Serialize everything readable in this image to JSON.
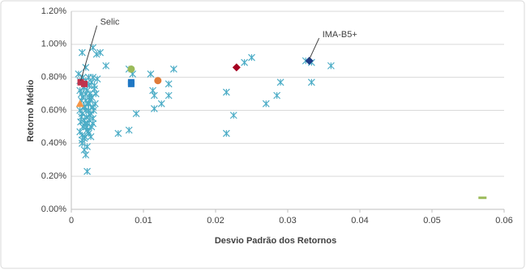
{
  "chart_data": {
    "type": "scatter",
    "x_label": "Desvio Padrão dos Retornos",
    "y_label": "Retorno Médio",
    "xlim": [
      0,
      0.06
    ],
    "xticks": [
      0,
      0.01,
      0.02,
      0.03,
      0.04,
      0.05,
      0.06
    ],
    "ylim": [
      0,
      1.2
    ],
    "yticks": [
      {
        "value": 0,
        "label": "0.00%"
      },
      {
        "value": 0.2,
        "label": "0.20%"
      },
      {
        "value": 0.4,
        "label": "0.40%"
      },
      {
        "value": 0.6,
        "label": "0.60%"
      },
      {
        "value": 0.8,
        "label": "0.80%"
      },
      {
        "value": 1.0,
        "label": "1.00%"
      },
      {
        "value": 1.2,
        "label": "1.20%"
      }
    ],
    "grid": true,
    "series": [
      {
        "color": "#4bacc6",
        "marker": "star",
        "x": [
          0.001,
          0.0015,
          0.002,
          0.003,
          0.0035,
          0.004,
          0.0048,
          0.003,
          0.0025,
          0.002,
          0.0022,
          0.002,
          0.0022,
          0.0015,
          0.0018,
          0.0065,
          0.008,
          0.009,
          0.0115,
          0.0113,
          0.0115,
          0.011,
          0.0125,
          0.0135,
          0.0135,
          0.0142,
          0.0215,
          0.0215,
          0.0225,
          0.024,
          0.025,
          0.027,
          0.0285,
          0.029,
          0.0325,
          0.0333,
          0.0333,
          0.036,
          0.008,
          0.0085,
          0.0012,
          0.0014,
          0.0016,
          0.0018,
          0.002,
          0.0022,
          0.0024,
          0.0026,
          0.0028,
          0.003,
          0.0032,
          0.0034,
          0.0012,
          0.0015,
          0.0018,
          0.0021,
          0.0024,
          0.0027,
          0.003,
          0.0033,
          0.0013,
          0.0016,
          0.0019,
          0.0022,
          0.0025,
          0.0028,
          0.0031,
          0.0012,
          0.0015,
          0.0018,
          0.0021,
          0.0024,
          0.0027,
          0.0014,
          0.0017,
          0.002,
          0.0023,
          0.0026,
          0.0012,
          0.0016,
          0.002,
          0.0024,
          0.0028,
          0.0032,
          0.0036,
          0.0014,
          0.0018,
          0.0022,
          0.0026,
          0.003,
          0.0015,
          0.0019,
          0.0023,
          0.0017,
          0.0021,
          0.0025
        ],
        "values": [
          0.82,
          0.95,
          0.86,
          0.98,
          0.94,
          0.95,
          0.87,
          0.8,
          0.75,
          0.7,
          0.23,
          0.33,
          0.38,
          0.4,
          0.36,
          0.46,
          0.48,
          0.58,
          0.61,
          0.72,
          0.69,
          0.82,
          0.64,
          0.69,
          0.76,
          0.85,
          0.71,
          0.46,
          0.57,
          0.89,
          0.92,
          0.64,
          0.69,
          0.77,
          0.9,
          0.89,
          0.77,
          0.87,
          0.85,
          0.82,
          0.72,
          0.7,
          0.68,
          0.74,
          0.66,
          0.72,
          0.64,
          0.7,
          0.68,
          0.62,
          0.73,
          0.7,
          0.6,
          0.58,
          0.62,
          0.56,
          0.6,
          0.58,
          0.55,
          0.64,
          0.53,
          0.5,
          0.52,
          0.48,
          0.54,
          0.5,
          0.6,
          0.47,
          0.45,
          0.43,
          0.5,
          0.46,
          0.44,
          0.66,
          0.62,
          0.6,
          0.64,
          0.66,
          0.78,
          0.8,
          0.78,
          0.8,
          0.77,
          0.75,
          0.79,
          0.56,
          0.54,
          0.52,
          0.57,
          0.52,
          0.42,
          0.44,
          0.47,
          0.74,
          0.76,
          0.68
        ]
      },
      {
        "color": "#c0334d",
        "marker": "square",
        "x": [
          0.0013,
          0.0018
        ],
        "values": [
          0.77,
          0.76
        ]
      },
      {
        "color": "#f79646",
        "marker": "triangle",
        "x": [
          0.0012
        ],
        "values": [
          0.64
        ]
      },
      {
        "color": "#9bbb59",
        "marker": "circle",
        "x": [
          0.0083
        ],
        "values": [
          0.85
        ]
      },
      {
        "color": "#1f77c4",
        "marker": "square",
        "x": [
          0.0083,
          0.0083
        ],
        "values": [
          0.77,
          0.76
        ]
      },
      {
        "color": "#e07b39",
        "marker": "circle",
        "x": [
          0.012
        ],
        "values": [
          0.78
        ]
      },
      {
        "color": "#a50021",
        "marker": "diamond",
        "x": [
          0.0229
        ],
        "values": [
          0.86
        ]
      },
      {
        "color": "#1f3c88",
        "marker": "diamond",
        "x": [
          0.033
        ],
        "values": [
          0.9
        ]
      },
      {
        "color": "#9bbb59",
        "marker": "dash",
        "x": [
          0.057
        ],
        "values": [
          0.07
        ]
      }
    ],
    "annotations": [
      {
        "text": "Selic",
        "x": 0.0013,
        "y": 0.78
      },
      {
        "text": "IMA-B5+",
        "x": 0.033,
        "y": 0.91
      }
    ]
  }
}
